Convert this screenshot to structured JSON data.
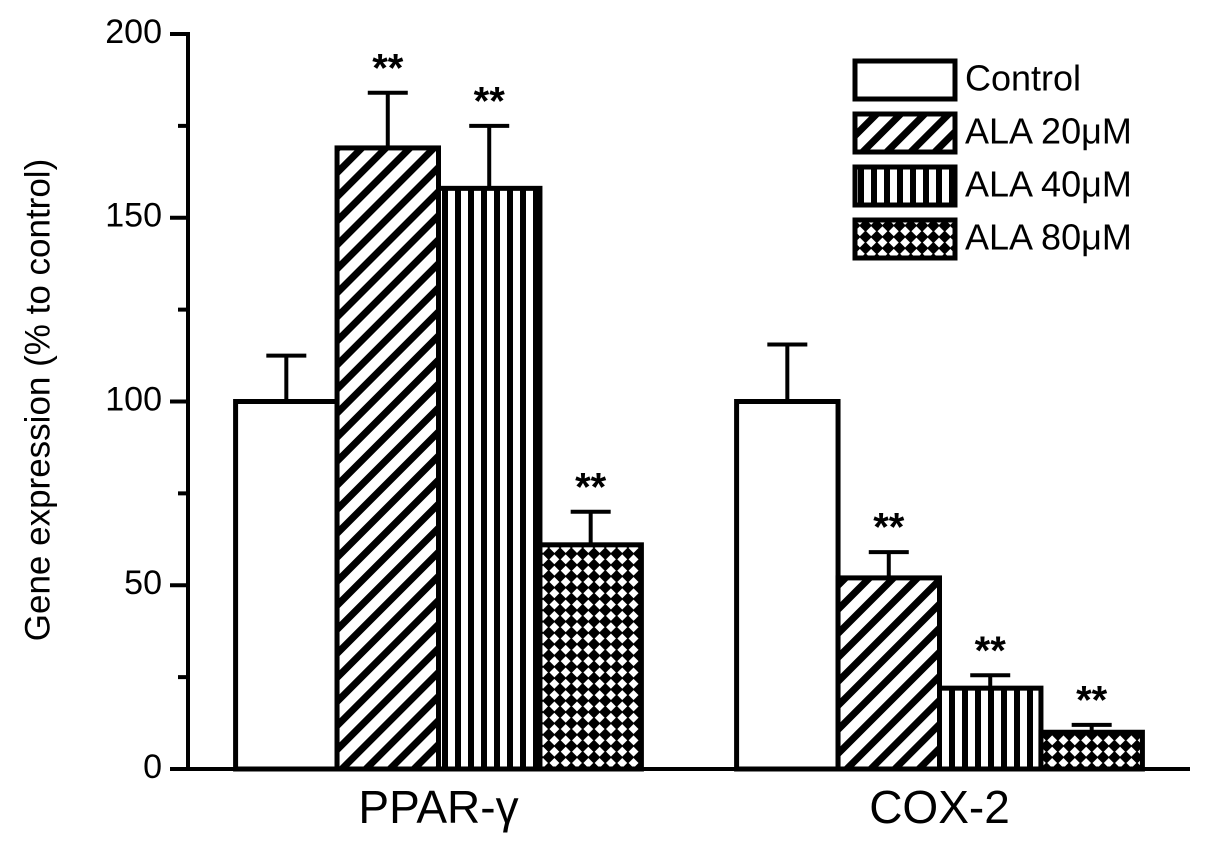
{
  "chart_data": {
    "type": "bar",
    "ylabel": "Gene expression (% to control)",
    "categories": [
      "PPAR-γ",
      "COX-2"
    ],
    "series": [
      {
        "name": "Control",
        "color": "#ffffff",
        "hatch": "none",
        "values": [
          100,
          100
        ],
        "errors": [
          12.5,
          15.5
        ]
      },
      {
        "name": "ALA 20μM",
        "color": "#000000",
        "hatch": "diagonal",
        "values": [
          169,
          52
        ],
        "errors": [
          15,
          7
        ],
        "annotations": [
          "**",
          "**"
        ]
      },
      {
        "name": "ALA 40μM",
        "color": "#000000",
        "hatch": "vertical",
        "values": [
          158,
          22
        ],
        "errors": [
          17,
          3.5
        ],
        "annotations": [
          "**",
          "**"
        ]
      },
      {
        "name": "ALA 80μM",
        "color": "#000000",
        "hatch": "cross",
        "values": [
          61,
          10
        ],
        "errors": [
          9,
          2
        ],
        "annotations": [
          "**",
          "**"
        ]
      }
    ],
    "ylim": [
      0,
      200
    ],
    "yticks": [
      0,
      50,
      100,
      150,
      200
    ],
    "yminorticks": [
      25,
      75,
      125,
      175
    ],
    "legend": "upper right",
    "grid": false
  }
}
